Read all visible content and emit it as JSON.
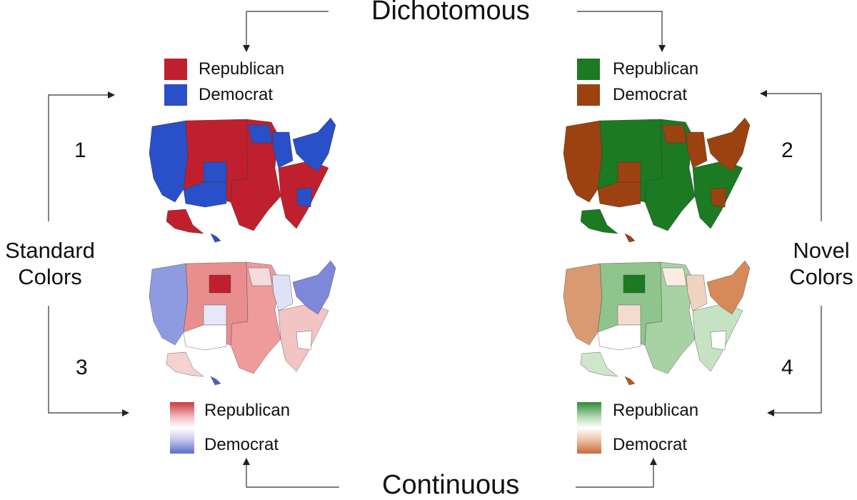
{
  "titles": {
    "top": "Dichotomous",
    "bottom": "Continuous"
  },
  "side_labels": {
    "left": [
      "Standard",
      "Colors"
    ],
    "right": [
      "Novel",
      "Colors"
    ]
  },
  "panel_numbers": [
    "1",
    "2",
    "3",
    "4"
  ],
  "colors": {
    "standard_republican": "#c0202e",
    "standard_democrat": "#2950c8",
    "novel_republican": "#1b7a22",
    "novel_democrat": "#9c4210",
    "continuous_white": "#ffffff"
  },
  "legends": {
    "dichotomous_standard": {
      "republican": "Republican",
      "democrat": "Democrat"
    },
    "dichotomous_novel": {
      "republican": "Republican",
      "democrat": "Democrat"
    },
    "continuous_standard": {
      "republican": "Republican",
      "democrat": "Democrat"
    },
    "continuous_novel": {
      "republican": "Republican",
      "democrat": "Democrat"
    }
  },
  "maps": [
    {
      "panel": "1",
      "scheme": "standard",
      "encoding": "dichotomous"
    },
    {
      "panel": "2",
      "scheme": "novel",
      "encoding": "dichotomous"
    },
    {
      "panel": "3",
      "scheme": "standard",
      "encoding": "continuous"
    },
    {
      "panel": "4",
      "scheme": "novel",
      "encoding": "continuous"
    }
  ]
}
